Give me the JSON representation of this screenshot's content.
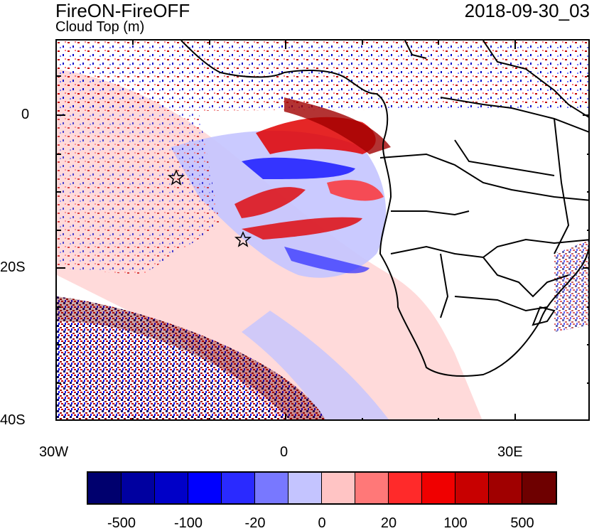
{
  "header": {
    "title": "FireON-FireOFF",
    "subtitle": "Cloud Top (m)",
    "timestamp": "2018-09-30_03"
  },
  "axes": {
    "y_ticks": [
      "0",
      "20S",
      "40S"
    ],
    "x_ticks": [
      "30W",
      "0",
      "30E"
    ]
  },
  "colorbar": {
    "colors": [
      "#00006e",
      "#0000a0",
      "#0000c8",
      "#0000ff",
      "#2a2aff",
      "#7878ff",
      "#c4c4ff",
      "#ffc4c4",
      "#ff7878",
      "#ff2a2a",
      "#f00000",
      "#c80000",
      "#a00000",
      "#6e0000"
    ],
    "labels": [
      "-500",
      "-100",
      "-20",
      "0",
      "20",
      "100",
      "500"
    ]
  }
}
